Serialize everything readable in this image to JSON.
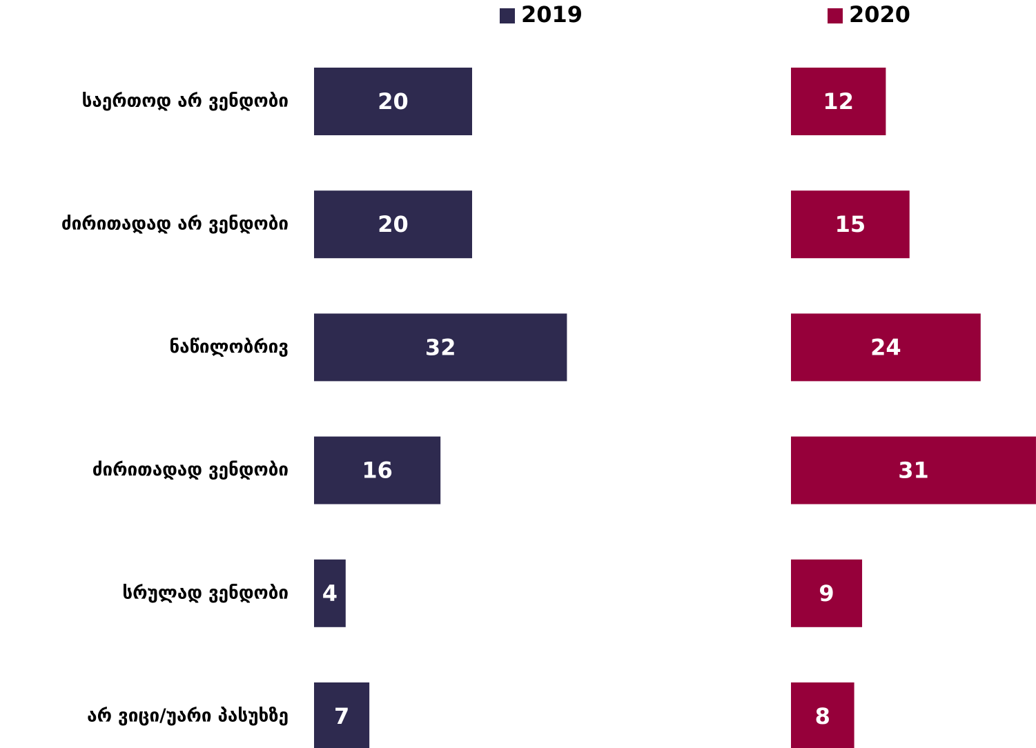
{
  "chart_data": {
    "type": "bar",
    "orientation": "horizontal",
    "categories": [
      "საერთოდ არ ვენდობი",
      "ძირითადად არ ვენდობი",
      "ნაწილობრივ",
      "ძირითადად ვენდობი",
      "სრულად ვენდობი",
      "არ ვიცი/უარი პასუხზე"
    ],
    "series": [
      {
        "name": "2019",
        "color": "#2e2a4f",
        "values": [
          20,
          20,
          32,
          16,
          4,
          7
        ]
      },
      {
        "name": "2020",
        "color": "#96003a",
        "values": [
          12,
          15,
          24,
          31,
          9,
          8
        ]
      }
    ]
  }
}
